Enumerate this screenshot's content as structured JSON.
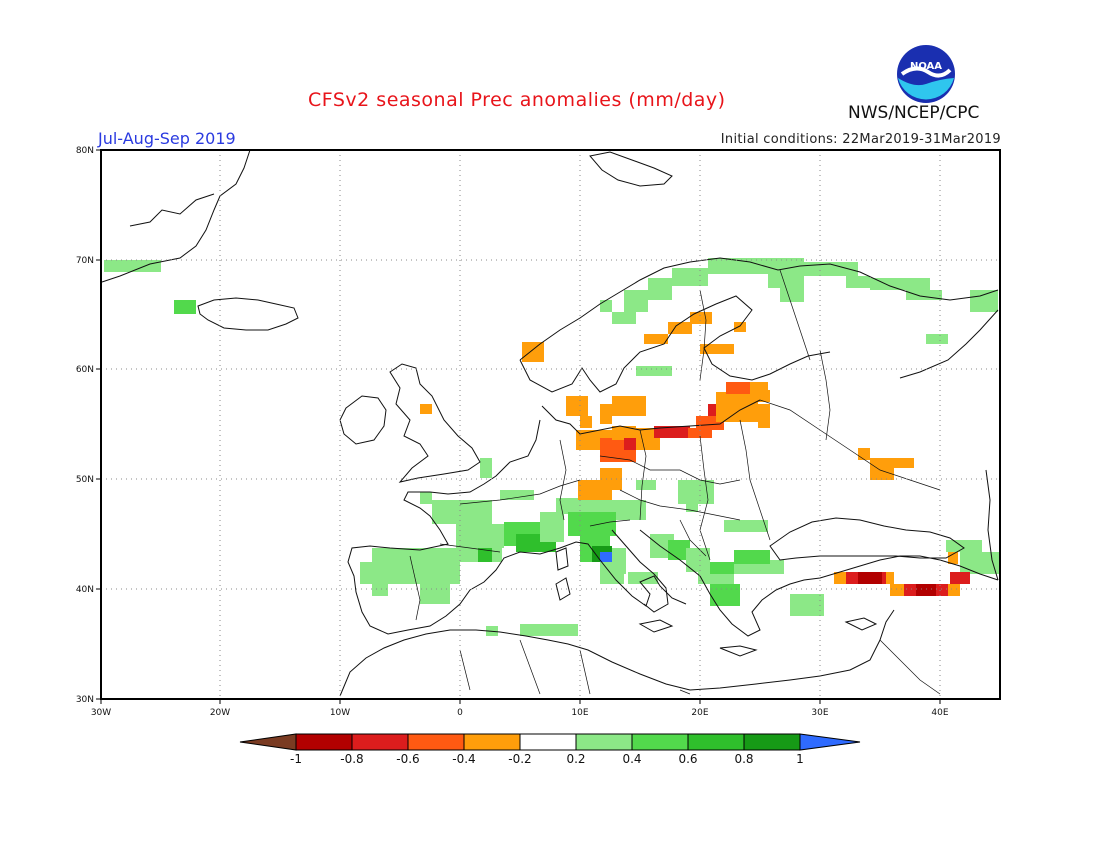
{
  "header": {
    "title": "CFSv2 seasonal Prec anomalies (mm/day)",
    "season": "Jul-Aug-Sep 2019",
    "initial_conditions": "Initial conditions: 22Mar2019-31Mar2019",
    "agency": "NWS/NCEP/CPC",
    "logo_text": "NOAA"
  },
  "axes": {
    "lat_labels": [
      "80N",
      "70N",
      "60N",
      "50N",
      "40N",
      "30N"
    ],
    "lon_labels": [
      "30W",
      "20W",
      "10W",
      "0",
      "10E",
      "20E",
      "30E",
      "40E"
    ],
    "lon_range": [
      -30,
      45
    ],
    "lat_range": [
      30,
      80
    ],
    "grid": "dotted"
  },
  "colorbar": {
    "ticks": [
      "-1",
      "-0.8",
      "-0.6",
      "-0.4",
      "-0.2",
      "0.2",
      "0.4",
      "0.6",
      "0.8",
      "1"
    ],
    "colors": [
      "#7a3b22",
      "#b20000",
      "#dc1d1d",
      "#ff5a12",
      "#ff9e0b",
      "#ffffff",
      "#8ce887",
      "#52d94c",
      "#2fbf2c",
      "#169a16",
      "#2f6bff"
    ]
  }
}
